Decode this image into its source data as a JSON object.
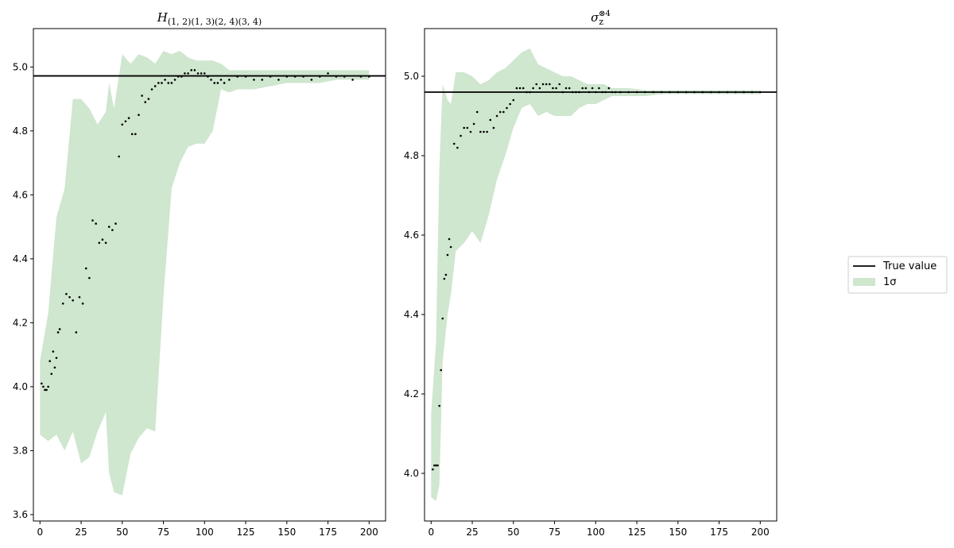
{
  "figure": {
    "legend": {
      "placement": "right",
      "entries": [
        "True value",
        "1σ"
      ]
    },
    "colors": {
      "band": "#cfe6cf",
      "line": "#000000",
      "points": "#000000"
    }
  },
  "chart_data": [
    {
      "type": "line",
      "title": "H(1,2)(1,3)(2,4)(3,4)",
      "title_main": "H",
      "title_sub": "(1, 2)(1, 3)(2, 4)(3, 4)",
      "xlim": [
        -4,
        210
      ],
      "ylim": [
        3.58,
        5.12
      ],
      "xticks": [
        0,
        25,
        50,
        75,
        100,
        125,
        150,
        175,
        200
      ],
      "yticks": [
        3.6,
        3.8,
        4.0,
        4.2,
        4.4,
        4.6,
        4.8,
        5.0
      ],
      "true_value": 4.972,
      "estimates": {
        "x": [
          1,
          2,
          3,
          4,
          5,
          6,
          7,
          8,
          9,
          10,
          11,
          12,
          14,
          16,
          18,
          20,
          22,
          24,
          26,
          28,
          30,
          32,
          34,
          36,
          38,
          40,
          42,
          44,
          46,
          48,
          50,
          52,
          54,
          56,
          58,
          60,
          62,
          64,
          66,
          68,
          70,
          72,
          74,
          76,
          78,
          80,
          82,
          84,
          86,
          88,
          90,
          92,
          94,
          96,
          98,
          100,
          102,
          104,
          106,
          108,
          110,
          112,
          115,
          120,
          125,
          130,
          135,
          140,
          145,
          150,
          155,
          160,
          165,
          170,
          175,
          180,
          185,
          190,
          195,
          200
        ],
        "y": [
          4.01,
          4.0,
          3.99,
          3.99,
          4.0,
          4.08,
          4.04,
          4.11,
          4.06,
          4.09,
          4.17,
          4.18,
          4.26,
          4.29,
          4.28,
          4.27,
          4.17,
          4.28,
          4.26,
          4.37,
          4.34,
          4.52,
          4.51,
          4.45,
          4.46,
          4.45,
          4.5,
          4.49,
          4.51,
          4.72,
          4.82,
          4.83,
          4.84,
          4.79,
          4.79,
          4.85,
          4.91,
          4.89,
          4.9,
          4.93,
          4.94,
          4.95,
          4.95,
          4.96,
          4.95,
          4.95,
          4.96,
          4.97,
          4.97,
          4.98,
          4.98,
          4.99,
          4.99,
          4.98,
          4.98,
          4.98,
          4.97,
          4.96,
          4.95,
          4.95,
          4.96,
          4.95,
          4.96,
          4.97,
          4.97,
          4.96,
          4.96,
          4.97,
          4.96,
          4.97,
          4.97,
          4.97,
          4.96,
          4.97,
          4.98,
          4.97,
          4.97,
          4.96,
          4.97,
          4.97
        ]
      },
      "band": {
        "x": [
          0,
          5,
          10,
          15,
          20,
          25,
          30,
          35,
          40,
          42,
          45,
          50,
          55,
          60,
          65,
          70,
          75,
          80,
          85,
          90,
          95,
          100,
          105,
          110,
          115,
          120,
          130,
          140,
          150,
          160,
          170,
          180,
          190,
          200
        ],
        "lower": [
          3.85,
          3.83,
          3.85,
          3.8,
          3.86,
          3.76,
          3.78,
          3.86,
          3.92,
          3.73,
          3.67,
          3.66,
          3.79,
          3.84,
          3.87,
          3.86,
          4.28,
          4.62,
          4.7,
          4.75,
          4.76,
          4.76,
          4.8,
          4.93,
          4.92,
          4.93,
          4.93,
          4.94,
          4.95,
          4.95,
          4.95,
          4.96,
          4.96,
          4.96
        ],
        "upper": [
          4.08,
          4.23,
          4.53,
          4.62,
          4.9,
          4.9,
          4.87,
          4.82,
          4.86,
          4.95,
          4.87,
          5.04,
          5.01,
          5.04,
          5.03,
          5.01,
          5.05,
          5.04,
          5.05,
          5.03,
          5.02,
          5.02,
          5.02,
          5.01,
          4.99,
          4.99,
          4.99,
          4.99,
          4.99,
          4.99,
          4.99,
          4.99,
          4.99,
          4.99
        ]
      }
    },
    {
      "type": "line",
      "title": "σz⊗4",
      "title_main": "σ",
      "title_sub": "z",
      "title_sup": "⊗4",
      "xlim": [
        -4,
        210
      ],
      "ylim": [
        3.88,
        5.12
      ],
      "xticks": [
        0,
        25,
        50,
        75,
        100,
        125,
        150,
        175,
        200
      ],
      "yticks": [
        4.0,
        4.2,
        4.4,
        4.6,
        4.8,
        5.0
      ],
      "true_value": 4.96,
      "estimates": {
        "x": [
          1,
          2,
          3,
          4,
          5,
          6,
          7,
          8,
          9,
          10,
          11,
          12,
          14,
          16,
          18,
          20,
          22,
          24,
          26,
          28,
          30,
          32,
          34,
          36,
          38,
          40,
          42,
          44,
          46,
          48,
          50,
          52,
          54,
          56,
          58,
          60,
          62,
          64,
          66,
          68,
          70,
          72,
          74,
          76,
          78,
          80,
          82,
          84,
          86,
          88,
          90,
          92,
          94,
          96,
          98,
          100,
          102,
          104,
          106,
          108,
          110,
          112,
          115,
          120,
          125,
          130,
          135,
          140,
          145,
          150,
          155,
          160,
          165,
          170,
          175,
          180,
          185,
          190,
          195,
          200
        ],
        "y": [
          4.01,
          4.02,
          4.02,
          4.02,
          4.17,
          4.26,
          4.39,
          4.49,
          4.5,
          4.55,
          4.59,
          4.57,
          4.83,
          4.82,
          4.85,
          4.87,
          4.87,
          4.86,
          4.88,
          4.91,
          4.86,
          4.86,
          4.86,
          4.89,
          4.87,
          4.9,
          4.91,
          4.91,
          4.92,
          4.93,
          4.94,
          4.97,
          4.97,
          4.97,
          4.96,
          4.96,
          4.97,
          4.98,
          4.97,
          4.98,
          4.98,
          4.98,
          4.97,
          4.97,
          4.98,
          4.96,
          4.97,
          4.97,
          4.96,
          4.96,
          4.96,
          4.97,
          4.97,
          4.96,
          4.97,
          4.96,
          4.97,
          4.96,
          4.96,
          4.97,
          4.96,
          4.96,
          4.96,
          4.96,
          4.96,
          4.96,
          4.96,
          4.96,
          4.96,
          4.96,
          4.96,
          4.96,
          4.96,
          4.96,
          4.96,
          4.96,
          4.96,
          4.96,
          4.96,
          4.96
        ]
      },
      "band": {
        "x": [
          0,
          3,
          5,
          7,
          10,
          12,
          15,
          20,
          25,
          30,
          35,
          40,
          45,
          50,
          55,
          60,
          65,
          70,
          75,
          80,
          85,
          90,
          95,
          100,
          105,
          110,
          120,
          130,
          140,
          150,
          160,
          170,
          180,
          190,
          200
        ],
        "lower": [
          3.94,
          3.93,
          3.97,
          4.28,
          4.4,
          4.45,
          4.56,
          4.58,
          4.61,
          4.58,
          4.65,
          4.74,
          4.8,
          4.87,
          4.92,
          4.93,
          4.9,
          4.91,
          4.9,
          4.9,
          4.9,
          4.92,
          4.93,
          4.93,
          4.94,
          4.95,
          4.95,
          4.95,
          4.955,
          4.955,
          4.955,
          4.955,
          4.955,
          4.955,
          4.955
        ],
        "upper": [
          4.15,
          4.33,
          4.77,
          4.98,
          4.94,
          4.93,
          5.01,
          5.01,
          5.0,
          4.98,
          4.99,
          5.01,
          5.02,
          5.04,
          5.06,
          5.07,
          5.03,
          5.02,
          5.01,
          5.0,
          5.0,
          4.99,
          4.98,
          4.98,
          4.98,
          4.97,
          4.97,
          4.965,
          4.965,
          4.965,
          4.965,
          4.965,
          4.965,
          4.965,
          4.965
        ]
      }
    }
  ]
}
